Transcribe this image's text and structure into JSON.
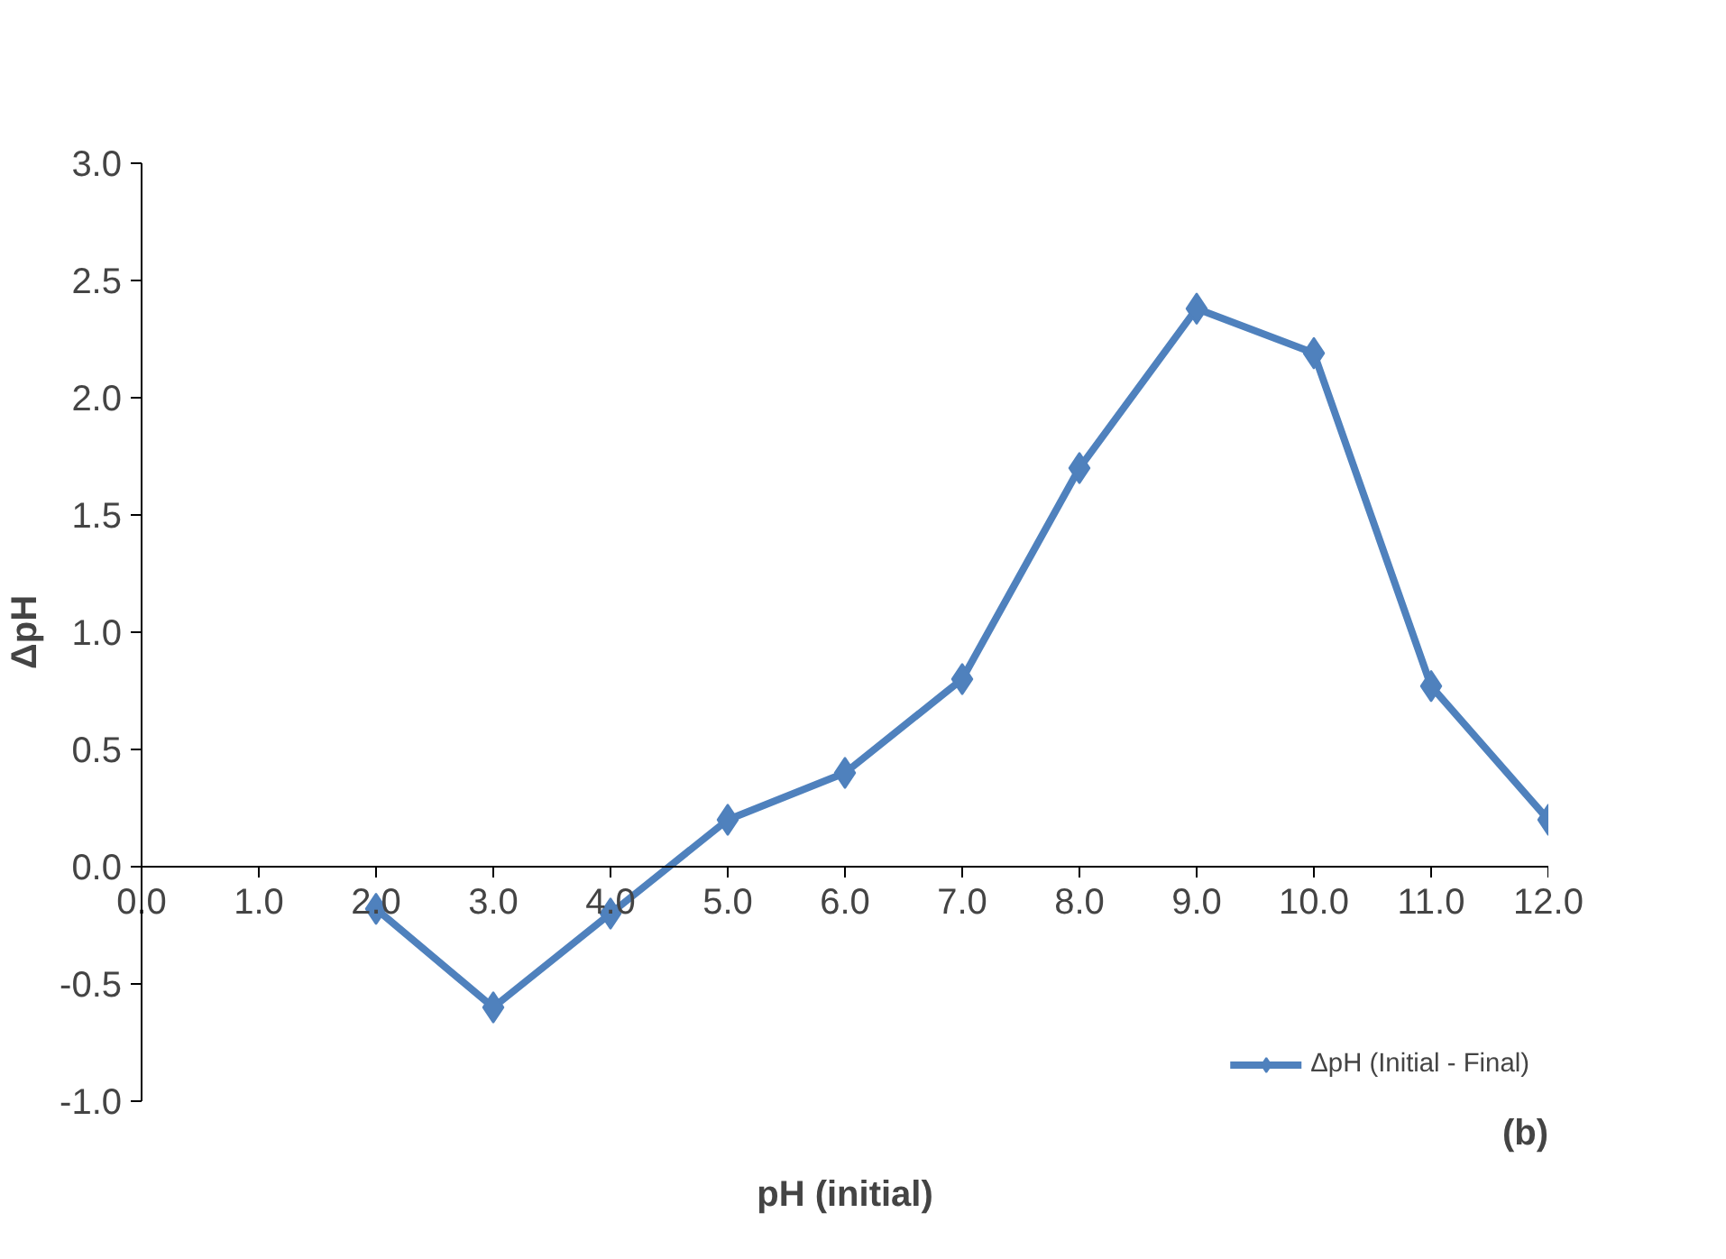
{
  "chart_data": {
    "type": "line",
    "xlabel": "pH (initial)",
    "ylabel": "ΔpH",
    "annotations": [
      "(b)"
    ],
    "x": [
      2,
      3,
      4,
      5,
      6,
      7,
      8,
      9,
      10,
      11,
      12
    ],
    "series": [
      {
        "name": "ΔpH (Initial - Final)",
        "color": "#4f81bd",
        "values": [
          -0.18,
          -0.6,
          -0.2,
          0.2,
          0.4,
          0.8,
          1.7,
          2.38,
          2.19,
          0.77,
          0.2
        ]
      }
    ],
    "xlim": [
      0,
      12
    ],
    "ylim": [
      -1,
      3
    ],
    "xticks": [
      {
        "value": 0,
        "label": "0.0"
      },
      {
        "value": 1,
        "label": "1.0"
      },
      {
        "value": 2,
        "label": "2.0"
      },
      {
        "value": 3,
        "label": "3.0"
      },
      {
        "value": 4,
        "label": "4.0"
      },
      {
        "value": 5,
        "label": "5.0"
      },
      {
        "value": 6,
        "label": "6.0"
      },
      {
        "value": 7,
        "label": "7.0"
      },
      {
        "value": 8,
        "label": "8.0"
      },
      {
        "value": 9,
        "label": "9.0"
      },
      {
        "value": 10,
        "label": "10.0"
      },
      {
        "value": 11,
        "label": "11.0"
      },
      {
        "value": 12,
        "label": "12.0"
      }
    ],
    "yticks": [
      {
        "value": -1,
        "label": "-1.0"
      },
      {
        "value": -0.5,
        "label": "-0.5"
      },
      {
        "value": 0,
        "label": "0.0"
      },
      {
        "value": 0.5,
        "label": "0.5"
      },
      {
        "value": 1,
        "label": "1.0"
      },
      {
        "value": 1.5,
        "label": "1.5"
      },
      {
        "value": 2,
        "label": "2.0"
      },
      {
        "value": 2.5,
        "label": "2.5"
      },
      {
        "value": 3,
        "label": "3.0"
      }
    ],
    "grid": false,
    "legend": "bottom right",
    "marker": "diamond",
    "line_style": "solid"
  }
}
